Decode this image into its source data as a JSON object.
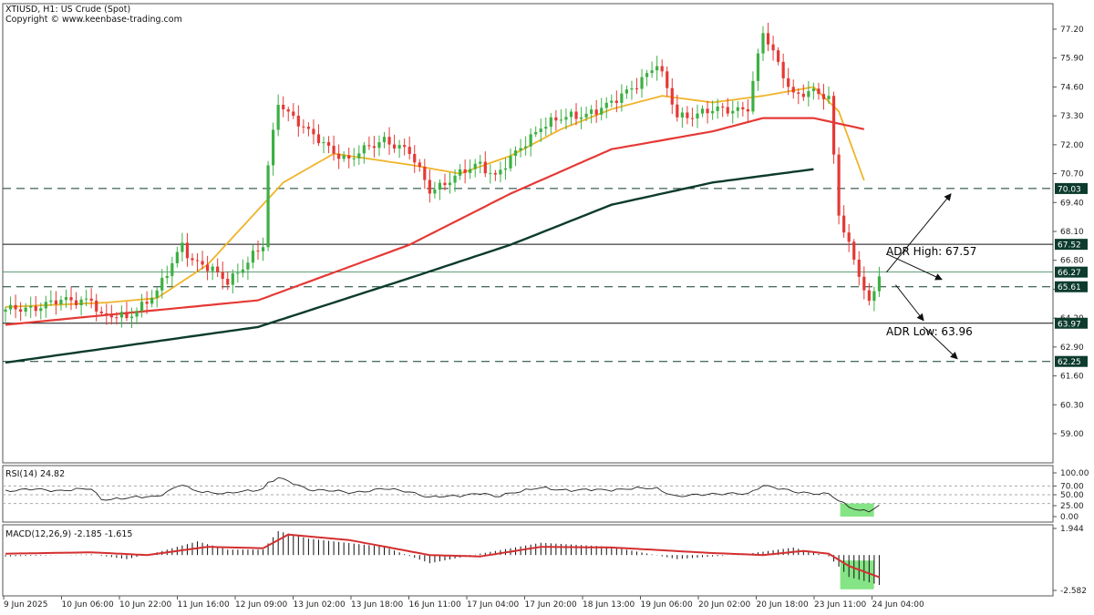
{
  "header": {
    "symbol_line": "XTIUSD, H1:  US Crude (Spot)",
    "copyright_line": "Copyright © www.keenbase-trading.com"
  },
  "colors": {
    "bull_candle": "#3cb043",
    "bear_candle": "#e53935",
    "ma_fast": "#f0b429",
    "ma_mid": "#e53935",
    "ma_slow": "#0d3b2e",
    "price_tag": "#0d3b2e",
    "highlight": "#66dd66",
    "macd_signal": "#d32f2f"
  },
  "annotations": {
    "adr_high": "ADR High: 67.57",
    "adr_low": "ADR Low: 63.96"
  },
  "chart_data": [
    {
      "type": "candlestick",
      "title": "XTIUSD, H1:  US Crude (Spot)",
      "x_tick_labels": [
        "9 Jun 2025",
        "10 Jun 06:00",
        "10 Jun 22:00",
        "11 Jun 16:00",
        "12 Jun 09:00",
        "13 Jun 02:00",
        "13 Jun 18:00",
        "16 Jun 11:00",
        "17 Jun 04:00",
        "17 Jun 20:00",
        "18 Jun 13:00",
        "19 Jun 06:00",
        "20 Jun 02:00",
        "20 Jun 18:00",
        "23 Jun 11:00",
        "24 Jun 04:00"
      ],
      "y_tick_labels": [
        "77.20",
        "75.90",
        "74.60",
        "73.30",
        "72.00",
        "70.70",
        "69.40",
        "68.10",
        "66.80",
        "65.50",
        "64.20",
        "62.90",
        "61.60",
        "60.30",
        "59.00"
      ],
      "ylim": [
        57.9,
        77.9
      ],
      "anchors": [
        [
          0,
          64.5
        ],
        [
          10,
          64.9
        ],
        [
          17,
          65.1
        ],
        [
          19,
          64.2
        ],
        [
          24,
          64.3
        ],
        [
          30,
          65.3
        ],
        [
          35,
          67.6
        ],
        [
          37,
          66.8
        ],
        [
          44,
          65.9
        ],
        [
          51,
          67.4
        ],
        [
          52,
          71.0
        ],
        [
          54,
          74.0
        ],
        [
          60,
          72.5
        ],
        [
          68,
          71.3
        ],
        [
          75,
          72.3
        ],
        [
          80,
          71.6
        ],
        [
          84,
          70.0
        ],
        [
          89,
          70.5
        ],
        [
          94,
          71.2
        ],
        [
          97,
          70.6
        ],
        [
          100,
          71.3
        ],
        [
          106,
          72.9
        ],
        [
          113,
          73.3
        ],
        [
          120,
          73.8
        ],
        [
          129,
          75.6
        ],
        [
          133,
          73.3
        ],
        [
          140,
          73.5
        ],
        [
          147,
          73.7
        ],
        [
          150,
          77.0
        ],
        [
          156,
          74.3
        ],
        [
          160,
          74.3
        ],
        [
          163,
          74.1
        ],
        [
          165,
          69.0
        ],
        [
          167,
          67.5
        ],
        [
          169,
          66.1
        ],
        [
          171,
          64.7
        ],
        [
          173,
          66.2
        ]
      ],
      "hlines": [
        {
          "value": 70.03,
          "style": "dashed",
          "tag": "70.03"
        },
        {
          "value": 67.52,
          "style": "solid",
          "tag": "67.52"
        },
        {
          "value": 66.27,
          "style": "solid-thin",
          "tag": "66.27"
        },
        {
          "value": 65.61,
          "style": "dashed",
          "tag": "65.61"
        },
        {
          "value": 63.97,
          "style": "solid",
          "tag": "63.97"
        },
        {
          "value": 62.25,
          "style": "dashed",
          "tag": "62.25"
        }
      ],
      "series": [
        {
          "role": "moving-average-fast",
          "anchors": [
            [
              0,
              64.7
            ],
            [
              20,
              64.9
            ],
            [
              30,
              65.1
            ],
            [
              40,
              66.6
            ],
            [
              55,
              70.3
            ],
            [
              65,
              71.6
            ],
            [
              80,
              71.1
            ],
            [
              90,
              70.7
            ],
            [
              100,
              71.5
            ],
            [
              110,
              72.7
            ],
            [
              120,
              73.6
            ],
            [
              130,
              74.2
            ],
            [
              140,
              73.9
            ],
            [
              150,
              74.2
            ],
            [
              160,
              74.6
            ],
            [
              165,
              73.5
            ],
            [
              170,
              70.4
            ]
          ]
        },
        {
          "role": "moving-average-mid",
          "anchors": [
            [
              0,
              63.9
            ],
            [
              50,
              65.0
            ],
            [
              80,
              67.5
            ],
            [
              100,
              69.8
            ],
            [
              120,
              71.8
            ],
            [
              140,
              72.6
            ],
            [
              150,
              73.2
            ],
            [
              160,
              73.2
            ],
            [
              170,
              72.7
            ]
          ]
        },
        {
          "role": "moving-average-slow",
          "anchors": [
            [
              0,
              62.2
            ],
            [
              50,
              63.8
            ],
            [
              80,
              66.0
            ],
            [
              100,
              67.5
            ],
            [
              120,
              69.3
            ],
            [
              140,
              70.3
            ],
            [
              160,
              70.9
            ]
          ]
        }
      ]
    },
    {
      "type": "line",
      "title": "RSI(14) 24.82",
      "y_tick_labels": [
        "100.00",
        "70.00",
        "50.00",
        "25.00",
        "0.00"
      ],
      "ylim": [
        0,
        100
      ],
      "reference_levels": [
        70,
        50,
        30
      ],
      "anchors": [
        [
          0,
          60
        ],
        [
          5,
          62
        ],
        [
          10,
          60
        ],
        [
          17,
          63
        ],
        [
          19,
          40
        ],
        [
          24,
          42
        ],
        [
          30,
          47
        ],
        [
          35,
          73
        ],
        [
          37,
          60
        ],
        [
          44,
          52
        ],
        [
          51,
          64
        ],
        [
          52,
          78
        ],
        [
          54,
          88
        ],
        [
          60,
          63
        ],
        [
          68,
          55
        ],
        [
          75,
          63
        ],
        [
          80,
          58
        ],
        [
          84,
          43
        ],
        [
          89,
          48
        ],
        [
          94,
          53
        ],
        [
          97,
          45
        ],
        [
          100,
          55
        ],
        [
          106,
          65
        ],
        [
          113,
          60
        ],
        [
          120,
          62
        ],
        [
          129,
          65
        ],
        [
          133,
          45
        ],
        [
          140,
          53
        ],
        [
          147,
          51
        ],
        [
          150,
          73
        ],
        [
          156,
          56
        ],
        [
          160,
          54
        ],
        [
          163,
          52
        ],
        [
          165,
          35
        ],
        [
          167,
          22
        ],
        [
          169,
          15
        ],
        [
          171,
          14
        ],
        [
          173,
          24.82
        ]
      ]
    },
    {
      "type": "bar",
      "title": "MACD(12,26,9) -2.185 -1.615",
      "y_tick_labels": [
        "1.944",
        "-2.582"
      ],
      "ylim": [
        -2.9,
        2.3
      ],
      "anchors": [
        [
          0,
          -0.1
        ],
        [
          17,
          0.05
        ],
        [
          24,
          -0.3
        ],
        [
          30,
          0.2
        ],
        [
          38,
          1.0
        ],
        [
          44,
          0.4
        ],
        [
          51,
          0.4
        ],
        [
          54,
          1.75
        ],
        [
          60,
          1.2
        ],
        [
          75,
          0.6
        ],
        [
          84,
          -0.6
        ],
        [
          94,
          0.1
        ],
        [
          106,
          0.9
        ],
        [
          120,
          0.6
        ],
        [
          133,
          -0.3
        ],
        [
          147,
          0.1
        ],
        [
          156,
          0.55
        ],
        [
          163,
          -0.1
        ],
        [
          167,
          -1.6
        ],
        [
          173,
          -2.185
        ]
      ],
      "signal_anchors": [
        [
          0,
          0.1
        ],
        [
          17,
          0.2
        ],
        [
          28,
          0.0
        ],
        [
          40,
          0.6
        ],
        [
          51,
          0.5
        ],
        [
          56,
          1.5
        ],
        [
          68,
          1.1
        ],
        [
          84,
          0.0
        ],
        [
          94,
          -0.1
        ],
        [
          106,
          0.6
        ],
        [
          120,
          0.55
        ],
        [
          140,
          0.15
        ],
        [
          150,
          0.0
        ],
        [
          158,
          0.3
        ],
        [
          163,
          0.1
        ],
        [
          167,
          -0.8
        ],
        [
          173,
          -1.615
        ]
      ]
    }
  ]
}
